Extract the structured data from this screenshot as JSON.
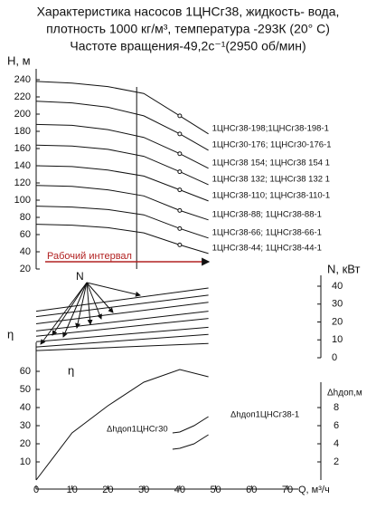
{
  "title": [
    "Характеристика насосов 1ЦНСг38, жидкость- вода,",
    "плотность 1000 кг/м³, температура -293К (20° С)",
    "Частоте вращения-49,2с⁻¹(2950 об/мин)"
  ],
  "chart_data": [
    {
      "type": "line",
      "ylabel": "Н, м",
      "xlim": [
        0,
        70
      ],
      "ylim": [
        20,
        240
      ],
      "yticks": [
        20,
        40,
        60,
        80,
        100,
        120,
        140,
        160,
        180,
        200,
        220,
        240
      ],
      "x": [
        0,
        10,
        20,
        30,
        40,
        48
      ],
      "color": "#111111",
      "marker_index": 4,
      "working_range": [
        28,
        48
      ],
      "annotation": "Рабочий интервал",
      "annotation_color": "#b22222",
      "series": [
        {
          "name": "1ЦНСг38-198;1ЦНСг38-198-1",
          "values": [
            238,
            236,
            232,
            224,
            198,
            177
          ]
        },
        {
          "name": "1ЦНСг30-176; 1ЦНСг30-176-1",
          "values": [
            215,
            213,
            208,
            198,
            177,
            158
          ]
        },
        {
          "name": "1ЦНСг38 154; 1ЦНСг38 154 1",
          "values": [
            188,
            187,
            182,
            173,
            154,
            137
          ]
        },
        {
          "name": "1ЦНСг38 132; 1ЦНСг38 132 1",
          "values": [
            164,
            163,
            159,
            151,
            133,
            118
          ]
        },
        {
          "name": "1ЦНСг38-110; 1ЦНСг38-110-1",
          "values": [
            140,
            139,
            135,
            128,
            112,
            99
          ]
        },
        {
          "name": "1ЦНСг38-88; 1ЦНСг38-88-1",
          "values": [
            117,
            116,
            112,
            105,
            88,
            77
          ]
        },
        {
          "name": "1ЦНСг38-66; 1ЦНСг38-66-1",
          "values": [
            93,
            92,
            89,
            83,
            67,
            56
          ]
        },
        {
          "name": "1ЦНСг38-44; 1ЦНСг38-44-1",
          "values": [
            72,
            71,
            68,
            62,
            48,
            38
          ]
        }
      ]
    },
    {
      "type": "line",
      "ylabel": "N, кВт",
      "annotation": "N",
      "xlim": [
        0,
        70
      ],
      "ylim": [
        0,
        40
      ],
      "yticks": [
        0,
        10,
        20,
        30,
        40
      ],
      "x": [
        0,
        48
      ],
      "color": "#111111",
      "series": [
        {
          "values": [
            26,
            39
          ]
        },
        {
          "values": [
            23,
            35
          ]
        },
        {
          "values": [
            19,
            31
          ]
        },
        {
          "values": [
            15,
            26
          ]
        },
        {
          "values": [
            12,
            22
          ]
        },
        {
          "values": [
            9,
            17
          ]
        },
        {
          "values": [
            6,
            13
          ]
        },
        {
          "values": [
            4,
            8
          ]
        }
      ]
    },
    {
      "type": "line",
      "ylabel": "η",
      "y2label": "Δhдоп,м",
      "xlabel": "Q, м³/ч",
      "xlim": [
        0,
        70
      ],
      "xticks": [
        0,
        10,
        20,
        30,
        40,
        50,
        60,
        70
      ],
      "ylim": [
        0,
        70
      ],
      "yticks": [
        10,
        20,
        30,
        40,
        50,
        60
      ],
      "y2lim": [
        0,
        10
      ],
      "y2ticks": [
        2,
        4,
        6,
        8
      ],
      "color": "#111111",
      "series": [
        {
          "name": "η",
          "x": [
            0,
            10,
            20,
            30,
            40,
            48
          ],
          "values": [
            0,
            26,
            41,
            54,
            61,
            57
          ]
        },
        {
          "name": "Δhдоп1ЦНСг30",
          "axis": "y2",
          "x": [
            38,
            40,
            44,
            48
          ],
          "values": [
            3.4,
            3.5,
            4,
            5
          ]
        },
        {
          "name": "Δhдоп1ЦНСг38-1",
          "axis": "y2",
          "x": [
            38,
            40,
            44,
            48
          ],
          "values": [
            5.2,
            5.3,
            6,
            7
          ]
        }
      ]
    }
  ]
}
